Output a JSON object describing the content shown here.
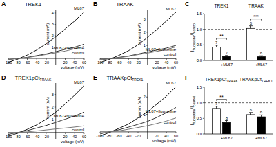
{
  "chart_data": [
    {
      "panel": "A",
      "type": "line",
      "title": "TREK1",
      "xlabel": "voltage (mV)",
      "ylabel": "current (nA)",
      "x": [
        -100,
        -80,
        -60,
        -40,
        -20,
        0,
        20,
        40,
        60
      ],
      "series": [
        {
          "name": "ML67",
          "color": "#111111",
          "values": [
            -0.35,
            -0.05,
            0.3,
            0.75,
            1.3,
            1.9,
            2.6,
            3.3,
            4.1
          ]
        },
        {
          "name": "ML67+fluoxetine",
          "color": "#333333",
          "values": [
            -0.1,
            0,
            0.1,
            0.25,
            0.4,
            0.6,
            0.8,
            1.0,
            1.25
          ]
        },
        {
          "name": "control",
          "color": "#777777",
          "values": [
            -0.08,
            0,
            0.08,
            0.2,
            0.35,
            0.5,
            0.65,
            0.85,
            1.05
          ]
        }
      ],
      "xlim": [
        -100,
        60
      ],
      "ylim": [
        -0.6,
        4.3
      ],
      "xticks": [
        -100,
        -80,
        -60,
        -40,
        -20,
        20,
        40,
        60
      ],
      "yticks": [
        1,
        2,
        3,
        4
      ]
    },
    {
      "panel": "B",
      "type": "line",
      "title": "TRAAK",
      "xlabel": "voltage (mV)",
      "ylabel": "current (nA)",
      "x": [
        -100,
        -80,
        -60,
        -40,
        -20,
        0,
        20,
        40,
        60
      ],
      "series": [
        {
          "name": "ML67",
          "color": "#111111",
          "values": [
            -0.3,
            -0.05,
            0.25,
            0.6,
            1.05,
            1.6,
            2.2,
            2.85,
            3.5
          ]
        },
        {
          "name": "ML67+fluoxetine",
          "color": "#333333",
          "values": [
            -0.1,
            0,
            0.1,
            0.2,
            0.35,
            0.5,
            0.65,
            0.8,
            1.0
          ]
        },
        {
          "name": "control",
          "color": "#777777",
          "values": [
            -0.08,
            0,
            0.08,
            0.17,
            0.3,
            0.42,
            0.55,
            0.7,
            0.88
          ]
        }
      ],
      "xlim": [
        -100,
        60
      ],
      "ylim": [
        -0.5,
        3.7
      ],
      "xticks": [
        -100,
        -80,
        -60,
        -40,
        -20,
        20,
        40,
        60
      ],
      "yticks": [
        1,
        2,
        3
      ]
    },
    {
      "panel": "C",
      "type": "bar",
      "categories": [
        "TREK1",
        "TRAAK"
      ],
      "ylabel": [
        {
          "text": "I"
        },
        {
          "text": "fluoxetine",
          "sub": true
        },
        {
          "text": "/I"
        },
        {
          "text": "control",
          "sub": true
        }
      ],
      "series": [
        {
          "color": "#ffffff",
          "values": [
            0.43,
            1.03
          ],
          "errors": [
            0.06,
            0.08
          ],
          "n": [
            7,
            6
          ]
        },
        {
          "name": "+ML67",
          "color": "#000000",
          "values": [
            0.13,
            0.12
          ],
          "errors": [
            0.03,
            0.03
          ],
          "n": [
            7,
            6
          ]
        }
      ],
      "ylim": [
        0,
        1.5
      ],
      "yticks": [
        {
          "value": 0,
          "label": "0.0"
        },
        0.5,
        {
          "value": 1,
          "label": "1.0"
        },
        1.5
      ],
      "reference_line": 1,
      "significance": [
        "**",
        "***"
      ]
    },
    {
      "panel": "D",
      "type": "line",
      "title": "TREK1pCt",
      "title_sub": "TRAAK",
      "xlabel": "voltage (mV)",
      "ylabel": "current (nA)",
      "x": [
        -100,
        -80,
        -60,
        -40,
        -20,
        0,
        20,
        40,
        60
      ],
      "series": [
        {
          "name": "ML67",
          "color": "#111111",
          "values": [
            -0.3,
            -0.05,
            0.25,
            0.6,
            1.05,
            1.6,
            2.25,
            2.95,
            3.7
          ]
        },
        {
          "name": "ML67+fluoxetine",
          "color": "#333333",
          "values": [
            -0.15,
            0,
            0.15,
            0.35,
            0.55,
            0.8,
            1.05,
            1.3,
            1.6
          ]
        },
        {
          "name": "control",
          "color": "#777777",
          "values": [
            -0.05,
            0,
            0.05,
            0.12,
            0.2,
            0.28,
            0.35,
            0.43,
            0.52
          ]
        }
      ],
      "xlim": [
        -100,
        60
      ],
      "ylim": [
        -0.5,
        3.9
      ],
      "xticks": [
        -100,
        -80,
        -60,
        -40,
        -20,
        20,
        40,
        60
      ],
      "yticks": [
        1,
        2,
        3
      ]
    },
    {
      "panel": "E",
      "type": "line",
      "title": "TRAAKpCt",
      "title_sub": "TREK1",
      "xlabel": "voltage (mV)",
      "ylabel": "current (nA)",
      "x": [
        -100,
        -80,
        -60,
        -40,
        -20,
        0,
        20,
        40,
        60
      ],
      "series": [
        {
          "name": "ML67",
          "color": "#111111",
          "values": [
            -0.25,
            -0.03,
            0.2,
            0.45,
            0.8,
            1.15,
            1.6,
            2.05,
            2.6
          ]
        },
        {
          "name": "ML67+fluoxetine",
          "color": "#333333",
          "values": [
            -0.12,
            0,
            0.12,
            0.27,
            0.43,
            0.6,
            0.83,
            1.1,
            1.4
          ]
        },
        {
          "name": "control",
          "color": "#777777",
          "values": [
            -0.08,
            0,
            0.06,
            0.15,
            0.25,
            0.35,
            0.48,
            0.62,
            0.8
          ]
        }
      ],
      "xlim": [
        -100,
        60
      ],
      "ylim": [
        -0.4,
        2.8
      ],
      "xticks": [
        -100,
        -80,
        -60,
        -40,
        -20,
        20,
        40,
        60
      ],
      "yticks": [
        1,
        2
      ]
    },
    {
      "panel": "F",
      "type": "bar",
      "categories": [
        "TREK1pCt",
        "TRAAKpCt"
      ],
      "category_subs": [
        "TRAAK",
        "TREK1"
      ],
      "ylabel": [
        {
          "text": "I"
        },
        {
          "text": "fluoxetine",
          "sub": true
        },
        {
          "text": "/I"
        },
        {
          "text": "control",
          "sub": true
        }
      ],
      "series": [
        {
          "color": "#ffffff",
          "values": [
            0.82,
            0.62
          ],
          "errors": [
            0.07,
            0.07
          ],
          "n": [
            7,
            6
          ]
        },
        {
          "name": "+ML67",
          "color": "#000000",
          "values": [
            0.37,
            0.55
          ],
          "errors": [
            0.06,
            0.06
          ],
          "n": [
            8,
            6
          ]
        }
      ],
      "ylim": [
        0,
        1.5
      ],
      "yticks": [
        {
          "value": 0,
          "label": "0.0"
        },
        0.5,
        {
          "value": 1,
          "label": "1.0"
        },
        1.5
      ],
      "reference_line": 1,
      "significance": [
        "**",
        null
      ]
    }
  ]
}
